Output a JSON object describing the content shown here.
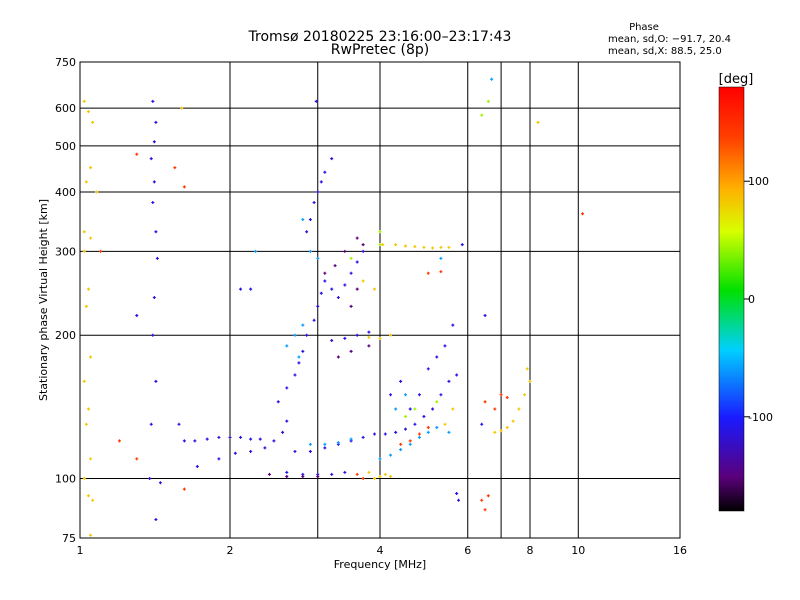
{
  "chart_data": {
    "type": "scatter",
    "title": "Tromsø 20180225 23:16:00–23:17:43",
    "subtitle": "RwPretec (8p)",
    "xlabel": "Frequency [MHz]",
    "ylabel": "Stationary phase Virtual Height [km]",
    "x_scale": "log",
    "y_scale": "log",
    "xlim": [
      1,
      16
    ],
    "ylim": [
      75,
      750
    ],
    "x_ticks": [
      1,
      2,
      4,
      6,
      8,
      10,
      16
    ],
    "y_ticks": [
      75,
      100,
      200,
      300,
      400,
      500,
      600,
      750
    ],
    "x_grid": [
      1,
      2,
      3,
      4,
      6,
      7,
      8,
      10
    ],
    "y_grid": [
      100,
      200,
      300,
      400,
      500,
      600
    ],
    "grid": true,
    "phase_box": {
      "title": "Phase",
      "line1": "mean, sd,O: −91.7, 20.4",
      "line2": "mean, sd,X:  88.5, 25.0"
    },
    "colorbar": {
      "label": "[deg]",
      "ticks": [
        100,
        0,
        -100
      ],
      "range": [
        -180,
        180
      ]
    },
    "series": [
      {
        "phase_deg": -110,
        "points": [
          [
            1.38,
            100
          ],
          [
            1.42,
            82
          ],
          [
            1.45,
            98
          ],
          [
            1.39,
            130
          ],
          [
            1.42,
            160
          ],
          [
            1.4,
            200
          ],
          [
            1.41,
            240
          ],
          [
            1.43,
            290
          ],
          [
            1.42,
            330
          ],
          [
            1.4,
            380
          ],
          [
            1.41,
            420
          ],
          [
            1.39,
            470
          ],
          [
            1.41,
            510
          ],
          [
            1.42,
            560
          ],
          [
            1.4,
            620
          ],
          [
            1.62,
            120
          ],
          [
            1.7,
            120
          ],
          [
            1.8,
            121
          ],
          [
            1.9,
            122
          ],
          [
            2.0,
            122
          ],
          [
            2.1,
            122
          ],
          [
            2.2,
            121
          ],
          [
            2.3,
            121
          ],
          [
            1.72,
            106
          ],
          [
            1.9,
            110
          ],
          [
            2.05,
            113
          ],
          [
            2.2,
            114
          ],
          [
            2.35,
            116
          ],
          [
            2.45,
            120
          ],
          [
            2.55,
            125
          ],
          [
            2.6,
            132
          ],
          [
            2.5,
            145
          ],
          [
            2.6,
            155
          ],
          [
            2.7,
            165
          ],
          [
            2.75,
            175
          ],
          [
            2.8,
            185
          ],
          [
            2.85,
            200
          ],
          [
            2.95,
            215
          ],
          [
            3.0,
            230
          ],
          [
            3.05,
            245
          ],
          [
            3.1,
            260
          ],
          [
            3.2,
            250
          ],
          [
            3.3,
            240
          ],
          [
            3.4,
            255
          ],
          [
            3.5,
            270
          ],
          [
            3.6,
            285
          ],
          [
            3.7,
            300
          ],
          [
            2.85,
            330
          ],
          [
            2.9,
            350
          ],
          [
            2.95,
            380
          ],
          [
            3.0,
            400
          ],
          [
            3.05,
            420
          ],
          [
            3.1,
            440
          ],
          [
            3.2,
            470
          ],
          [
            2.98,
            620
          ],
          [
            3.2,
            195
          ],
          [
            3.4,
            197
          ],
          [
            3.6,
            200
          ],
          [
            3.8,
            203
          ],
          [
            2.7,
            114
          ],
          [
            2.9,
            114
          ],
          [
            3.1,
            116
          ],
          [
            3.3,
            118
          ],
          [
            3.5,
            120
          ],
          [
            3.7,
            122
          ],
          [
            3.9,
            124
          ],
          [
            4.1,
            124
          ],
          [
            4.3,
            125
          ],
          [
            4.5,
            127
          ],
          [
            4.7,
            130
          ],
          [
            4.9,
            135
          ],
          [
            5.1,
            140
          ],
          [
            5.3,
            150
          ],
          [
            5.5,
            160
          ],
          [
            5.7,
            165
          ],
          [
            2.6,
            103
          ],
          [
            2.8,
            102
          ],
          [
            3.0,
            102
          ],
          [
            3.2,
            102
          ],
          [
            3.4,
            103
          ],
          [
            4.2,
            150
          ],
          [
            4.4,
            160
          ],
          [
            4.6,
            140
          ],
          [
            4.8,
            150
          ],
          [
            5.0,
            170
          ],
          [
            5.2,
            180
          ],
          [
            5.4,
            190
          ],
          [
            5.6,
            210
          ],
          [
            5.85,
            310
          ],
          [
            6.5,
            220
          ],
          [
            6.4,
            130
          ],
          [
            5.7,
            93
          ],
          [
            5.75,
            90
          ],
          [
            1.58,
            130
          ],
          [
            2.2,
            250
          ],
          [
            2.1,
            250
          ],
          [
            1.3,
            220
          ]
        ]
      },
      {
        "phase_deg": -150,
        "points": [
          [
            3.1,
            270
          ],
          [
            3.25,
            280
          ],
          [
            3.4,
            300
          ],
          [
            3.6,
            320
          ],
          [
            3.7,
            310
          ],
          [
            3.5,
            230
          ],
          [
            3.6,
            250
          ],
          [
            3.3,
            180
          ],
          [
            3.5,
            185
          ],
          [
            3.8,
            190
          ],
          [
            2.4,
            102
          ],
          [
            2.6,
            101
          ],
          [
            2.8,
            101
          ],
          [
            3.0,
            101
          ]
        ]
      },
      {
        "phase_deg": -60,
        "points": [
          [
            2.8,
            350
          ],
          [
            2.9,
            300
          ],
          [
            3.0,
            290
          ],
          [
            2.7,
            200
          ],
          [
            2.8,
            210
          ],
          [
            2.6,
            190
          ],
          [
            2.75,
            180
          ],
          [
            2.9,
            118
          ],
          [
            3.1,
            118
          ],
          [
            3.3,
            119
          ],
          [
            3.5,
            121
          ],
          [
            4.0,
            110
          ],
          [
            4.2,
            112
          ],
          [
            4.4,
            115
          ],
          [
            4.6,
            118
          ],
          [
            4.8,
            122
          ],
          [
            5.0,
            125
          ],
          [
            5.2,
            128
          ],
          [
            5.5,
            125
          ],
          [
            4.3,
            140
          ],
          [
            4.5,
            150
          ],
          [
            5.3,
            290
          ],
          [
            2.25,
            300
          ],
          [
            6.7,
            690
          ]
        ]
      },
      {
        "phase_deg": 40,
        "points": [
          [
            5.2,
            145
          ],
          [
            4.5,
            135
          ],
          [
            4.7,
            140
          ],
          [
            3.5,
            290
          ],
          [
            4.0,
            330
          ],
          [
            4.0,
            310
          ],
          [
            6.6,
            620
          ],
          [
            6.4,
            580
          ]
        ]
      },
      {
        "phase_deg": 80,
        "points": [
          [
            4.05,
            310
          ],
          [
            4.3,
            310
          ],
          [
            4.5,
            308
          ],
          [
            4.7,
            307
          ],
          [
            4.9,
            306
          ],
          [
            5.1,
            305
          ],
          [
            5.3,
            306
          ],
          [
            5.5,
            306
          ],
          [
            3.9,
            100
          ],
          [
            4.0,
            101
          ],
          [
            4.1,
            102
          ],
          [
            4.2,
            101
          ],
          [
            3.8,
            103
          ],
          [
            6.8,
            125
          ],
          [
            7.0,
            126
          ],
          [
            7.2,
            128
          ],
          [
            7.4,
            132
          ],
          [
            7.6,
            140
          ],
          [
            7.8,
            150
          ],
          [
            8.0,
            160
          ],
          [
            7.9,
            170
          ],
          [
            4.2,
            200
          ],
          [
            4.0,
            197
          ],
          [
            3.8,
            198
          ],
          [
            5.4,
            130
          ],
          [
            5.6,
            140
          ],
          [
            1.02,
            620
          ],
          [
            1.04,
            590
          ],
          [
            1.06,
            560
          ],
          [
            1.05,
            450
          ],
          [
            1.03,
            420
          ],
          [
            1.08,
            400
          ],
          [
            1.02,
            330
          ],
          [
            1.05,
            320
          ],
          [
            1.02,
            300
          ],
          [
            1.04,
            250
          ],
          [
            1.03,
            230
          ],
          [
            1.05,
            180
          ],
          [
            1.02,
            160
          ],
          [
            1.04,
            140
          ],
          [
            1.03,
            130
          ],
          [
            1.05,
            110
          ],
          [
            1.02,
            100
          ],
          [
            1.04,
            92
          ],
          [
            1.06,
            90
          ],
          [
            1.05,
            76
          ],
          [
            1.6,
            600
          ],
          [
            8.3,
            560
          ],
          [
            3.7,
            260
          ],
          [
            3.9,
            250
          ]
        ]
      },
      {
        "phase_deg": 140,
        "points": [
          [
            5.0,
            270
          ],
          [
            5.3,
            272
          ],
          [
            4.4,
            118
          ],
          [
            4.6,
            120
          ],
          [
            4.8,
            124
          ],
          [
            5.0,
            128
          ],
          [
            6.5,
            145
          ],
          [
            6.8,
            140
          ],
          [
            7.0,
            150
          ],
          [
            7.2,
            148
          ],
          [
            3.7,
            100
          ],
          [
            3.6,
            102
          ],
          [
            1.2,
            120
          ],
          [
            1.3,
            110
          ],
          [
            1.62,
            95
          ],
          [
            6.4,
            90
          ],
          [
            6.6,
            92
          ],
          [
            6.5,
            86
          ],
          [
            1.55,
            450
          ],
          [
            1.3,
            480
          ],
          [
            1.62,
            410
          ],
          [
            1.1,
            300
          ],
          [
            10.2,
            360
          ]
        ]
      }
    ]
  }
}
